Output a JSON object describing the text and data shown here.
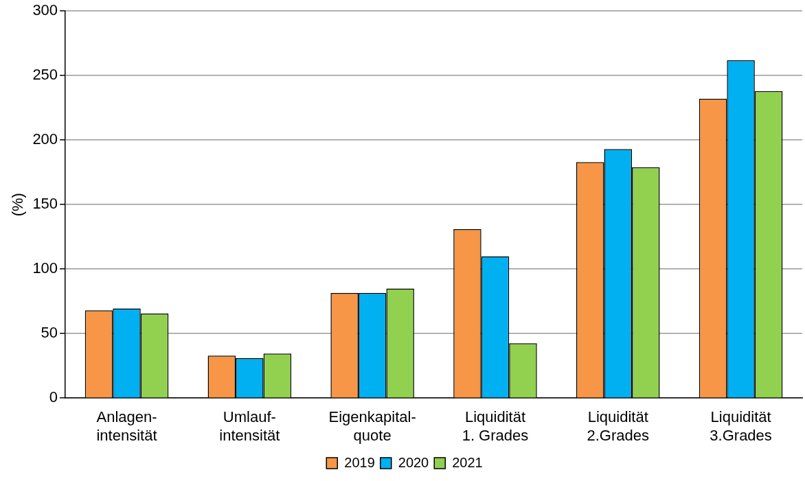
{
  "chart_data": {
    "type": "bar",
    "ylabel": "(%)",
    "categories": [
      "Anlagen-\nintensität",
      "Umlauf-\nintensität",
      "Eigenkapital-\nquote",
      "Liquidität\n1. Grades",
      "Liquidität\n2.Grades",
      "Liquidität\n3.Grades"
    ],
    "series": [
      {
        "name": "2019",
        "color": "#f79646",
        "values": [
          68,
          33,
          81.5,
          131,
          183,
          232
        ]
      },
      {
        "name": "2020",
        "color": "#00b0f0",
        "values": [
          69.5,
          31,
          81.5,
          110,
          193,
          262
        ]
      },
      {
        "name": "2021",
        "color": "#92d050",
        "values": [
          65.5,
          34.5,
          85,
          42.5,
          179,
          238
        ]
      }
    ],
    "ylim": [
      0,
      300
    ],
    "yticks": [
      0,
      50,
      100,
      150,
      200,
      250,
      300
    ],
    "grid": "y",
    "legend": "bottom"
  }
}
